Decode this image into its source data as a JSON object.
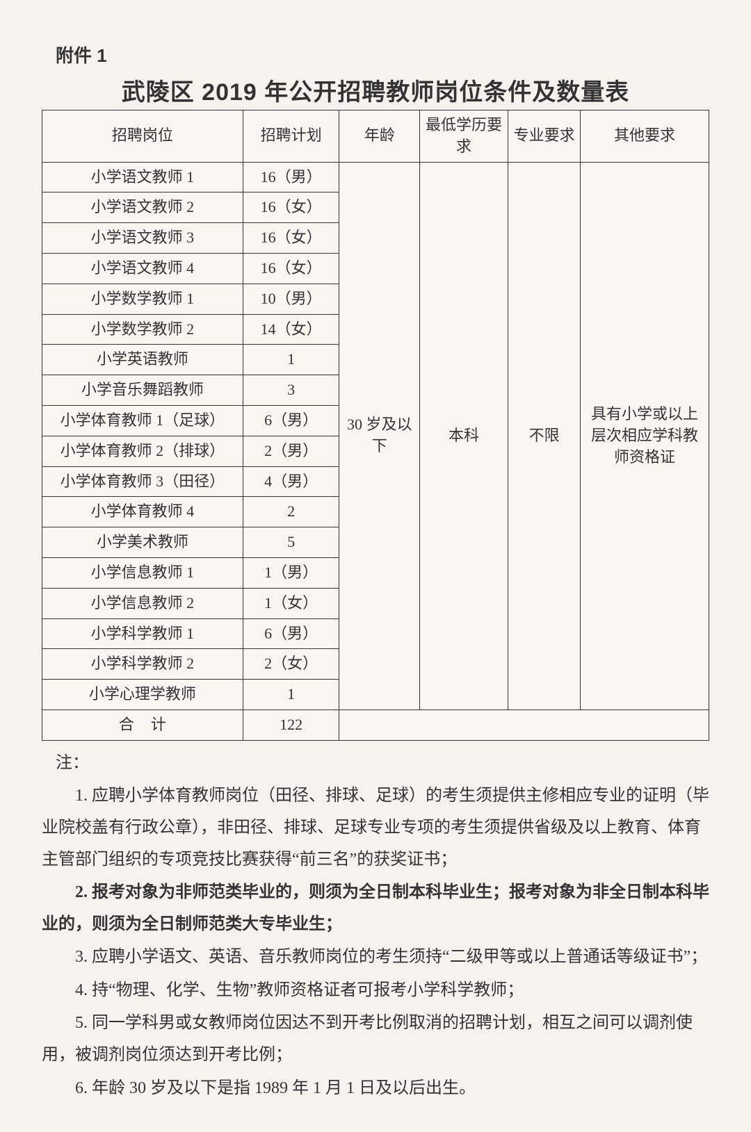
{
  "attachment_label": "附件 1",
  "title": "武陵区 2019 年公开招聘教师岗位条件及数量表",
  "headers": {
    "position": "招聘岗位",
    "plan": "招聘计划",
    "age": "年龄",
    "edu": "最低学历要求",
    "major": "专业要求",
    "other": "其他要求"
  },
  "shared": {
    "age": "30 岁及以下",
    "edu": "本科",
    "major": "不限",
    "other": "具有小学或以上层次相应学科教师资格证"
  },
  "rows": [
    {
      "position": "小学语文教师 1",
      "plan": "16（男）"
    },
    {
      "position": "小学语文教师 2",
      "plan": "16（女）"
    },
    {
      "position": "小学语文教师 3",
      "plan": "16（女）"
    },
    {
      "position": "小学语文教师 4",
      "plan": "16（女）"
    },
    {
      "position": "小学数学教师 1",
      "plan": "10（男）"
    },
    {
      "position": "小学数学教师 2",
      "plan": "14（女）"
    },
    {
      "position": "小学英语教师",
      "plan": "1"
    },
    {
      "position": "小学音乐舞蹈教师",
      "plan": "3"
    },
    {
      "position": "小学体育教师 1（足球）",
      "plan": "6（男）"
    },
    {
      "position": "小学体育教师 2（排球）",
      "plan": "2（男）"
    },
    {
      "position": "小学体育教师 3（田径）",
      "plan": "4（男）"
    },
    {
      "position": "小学体育教师 4",
      "plan": "2"
    },
    {
      "position": "小学美术教师",
      "plan": "5"
    },
    {
      "position": "小学信息教师 1",
      "plan": "1（男）"
    },
    {
      "position": "小学信息教师 2",
      "plan": "1（女）"
    },
    {
      "position": "小学科学教师 1",
      "plan": "6（男）"
    },
    {
      "position": "小学科学教师 2",
      "plan": "2（女）"
    },
    {
      "position": "小学心理学教师",
      "plan": "1"
    }
  ],
  "total": {
    "label": "合计",
    "value": "122"
  },
  "notes_label": "注：",
  "notes": [
    {
      "text": "1. 应聘小学体育教师岗位（田径、排球、足球）的考生须提供主修相应专业的证明（毕业院校盖有行政公章），非田径、排球、足球专业专项的考生须提供省级及以上教育、体育主管部门组织的专项竞技比赛获得“前三名”的获奖证书；",
      "bold": false
    },
    {
      "text": "2. 报考对象为非师范类毕业的，则须为全日制本科毕业生；报考对象为非全日制本科毕业的，则须为全日制师范类大专毕业生；",
      "bold": true
    },
    {
      "text": "3. 应聘小学语文、英语、音乐教师岗位的考生须持“二级甲等或以上普通话等级证书”；",
      "bold": false
    },
    {
      "text": "4. 持“物理、化学、生物”教师资格证者可报考小学科学教师；",
      "bold": false
    },
    {
      "text": "5. 同一学科男或女教师岗位因达不到开考比例取消的招聘计划，相互之间可以调剂使用，被调剂岗位须达到开考比例；",
      "bold": false
    },
    {
      "text": "6. 年龄 30 岁及以下是指 1989 年 1 月 1 日及以后出生。",
      "bold": false
    }
  ]
}
